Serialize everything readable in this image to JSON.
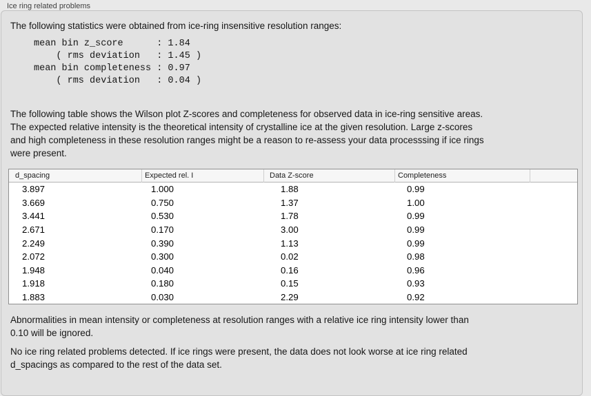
{
  "panel": {
    "title": "Ice ring related problems"
  },
  "intro": "The following statistics were obtained from ice-ring insensitive resolution ranges:",
  "stats_block": {
    "lines": [
      "mean bin z_score      : 1.84",
      "    ( rms deviation   : 1.45 )",
      "mean bin completeness : 0.97",
      "    ( rms deviation   : 0.04 )"
    ]
  },
  "description": {
    "lines": [
      "The following table shows the Wilson plot Z-scores and completeness for observed data in ice-ring sensitive areas.",
      "The expected relative intensity is the theoretical intensity of crystalline ice at the given resolution. Large z-scores",
      "and high completeness in these resolution ranges might be a reason to re-assess your data processsing if ice rings",
      "were present."
    ]
  },
  "table": {
    "columns": [
      "d_spacing",
      "Expected rel. I",
      "Data Z-score",
      "Completeness",
      ""
    ],
    "rows": [
      [
        "3.897",
        "1.000",
        "1.88",
        "0.99"
      ],
      [
        "3.669",
        "0.750",
        "1.37",
        "1.00"
      ],
      [
        "3.441",
        "0.530",
        "1.78",
        "0.99"
      ],
      [
        "2.671",
        "0.170",
        "3.00",
        "0.99"
      ],
      [
        "2.249",
        "0.390",
        "1.13",
        "0.99"
      ],
      [
        "2.072",
        "0.300",
        "0.02",
        "0.98"
      ],
      [
        "1.948",
        "0.040",
        "0.16",
        "0.96"
      ],
      [
        "1.918",
        "0.180",
        "0.15",
        "0.93"
      ],
      [
        "1.883",
        "0.030",
        "2.29",
        "0.92"
      ]
    ]
  },
  "notes": {
    "ignore_lines": [
      "Abnormalities in mean intensity or completeness at resolution ranges with a relative ice ring intensity lower than",
      "0.10 will be ignored."
    ],
    "conclusion_lines": [
      "No ice ring related problems detected. If ice rings were present, the data does not look worse at ice ring related",
      "d_spacings as compared to the rest of the data set."
    ]
  },
  "colors": {
    "outer-bg": "#e9e9e9",
    "panel-bg": "#e2e2e2",
    "panel-border": "#c3c3c3",
    "header-bg": "#f6f6f6",
    "table-border": "#8f8f8f",
    "label": "#3f3f3f",
    "text": "#161616"
  }
}
